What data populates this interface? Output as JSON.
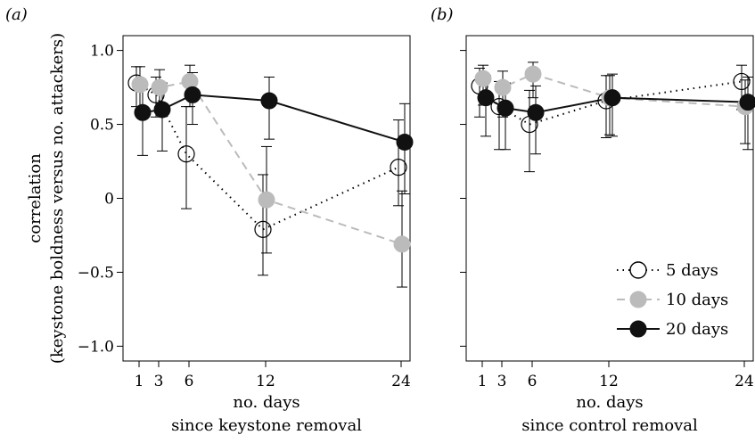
{
  "chart_data": [
    {
      "type": "line",
      "panel_label": "(a)",
      "xlabel": [
        "no. days",
        "since keystone removal"
      ],
      "ylabel": [
        "correlation",
        "(keystone boldness versus no. attackers)"
      ],
      "xticks": [
        1,
        3,
        6,
        12,
        24
      ],
      "xtick_labels": [
        "1",
        "3",
        "6",
        "12",
        "24"
      ],
      "yticks": [
        1.0,
        0.5,
        0,
        -0.5,
        -1.0
      ],
      "ytick_labels": [
        "1.0",
        "0.5",
        "0",
        "−0.5",
        "−1.0"
      ],
      "ylim": [
        -1.1,
        1.1
      ],
      "series": [
        {
          "name": "5 days",
          "style": "dotted",
          "marker": "open-circle",
          "color": "#000000",
          "x": [
            1,
            3,
            6,
            12,
            24
          ],
          "y": [
            0.78,
            0.7,
            0.3,
            -0.21,
            0.21
          ],
          "err_low": [
            0.62,
            0.55,
            -0.07,
            -0.52,
            -0.05
          ],
          "err_high": [
            0.89,
            0.82,
            0.62,
            0.16,
            0.53
          ]
        },
        {
          "name": "10 days",
          "style": "dashed",
          "marker": "filled-circle",
          "color": "#bbbbbb",
          "x": [
            1,
            3,
            6,
            12,
            24
          ],
          "y": [
            0.77,
            0.75,
            0.79,
            -0.01,
            -0.31
          ],
          "err_low": [
            0.6,
            0.58,
            0.62,
            -0.37,
            -0.6
          ],
          "err_high": [
            0.89,
            0.87,
            0.9,
            0.35,
            0.05
          ]
        },
        {
          "name": "20 days",
          "style": "solid",
          "marker": "filled-circle",
          "color": "#111111",
          "x": [
            1,
            3,
            6,
            12,
            24
          ],
          "y": [
            0.58,
            0.6,
            0.7,
            0.66,
            0.38
          ],
          "err_low": [
            0.29,
            0.32,
            0.5,
            0.4,
            0.03
          ],
          "err_high": [
            0.76,
            0.78,
            0.85,
            0.82,
            0.64
          ]
        }
      ]
    },
    {
      "type": "line",
      "panel_label": "(b)",
      "xlabel": [
        "no. days",
        "since control removal"
      ],
      "ylabel": [],
      "xticks": [
        1,
        3,
        6,
        12,
        24
      ],
      "xtick_labels": [
        "1",
        "3",
        "6",
        "12",
        "24"
      ],
      "yticks": [
        1.0,
        0.5,
        0,
        -0.5,
        -1.0
      ],
      "ytick_labels": [],
      "ylim": [
        -1.1,
        1.1
      ],
      "legend": {
        "position": "bottom-right",
        "entries": [
          "5 days",
          "10 days",
          "20 days"
        ]
      },
      "series": [
        {
          "name": "5 days",
          "style": "dotted",
          "marker": "open-circle",
          "color": "#000000",
          "x": [
            1,
            3,
            6,
            12,
            24
          ],
          "y": [
            0.76,
            0.62,
            0.5,
            0.66,
            0.79
          ],
          "err_low": [
            0.55,
            0.33,
            0.18,
            0.41,
            0.6
          ],
          "err_high": [
            0.88,
            0.79,
            0.73,
            0.83,
            0.9
          ]
        },
        {
          "name": "10 days",
          "style": "dashed",
          "marker": "filled-circle",
          "color": "#bbbbbb",
          "x": [
            1,
            3,
            6,
            12,
            24
          ],
          "y": [
            0.81,
            0.75,
            0.84,
            0.68,
            0.62
          ],
          "err_low": [
            0.63,
            0.55,
            0.68,
            0.43,
            0.37
          ],
          "err_high": [
            0.9,
            0.86,
            0.92,
            0.83,
            0.8
          ]
        },
        {
          "name": "20 days",
          "style": "solid",
          "marker": "filled-circle",
          "color": "#111111",
          "x": [
            1,
            3,
            6,
            12,
            24
          ],
          "y": [
            0.68,
            0.61,
            0.58,
            0.68,
            0.65
          ],
          "err_low": [
            0.42,
            0.33,
            0.3,
            0.42,
            0.33
          ],
          "err_high": [
            0.83,
            0.78,
            0.76,
            0.84,
            0.82
          ]
        }
      ]
    }
  ]
}
